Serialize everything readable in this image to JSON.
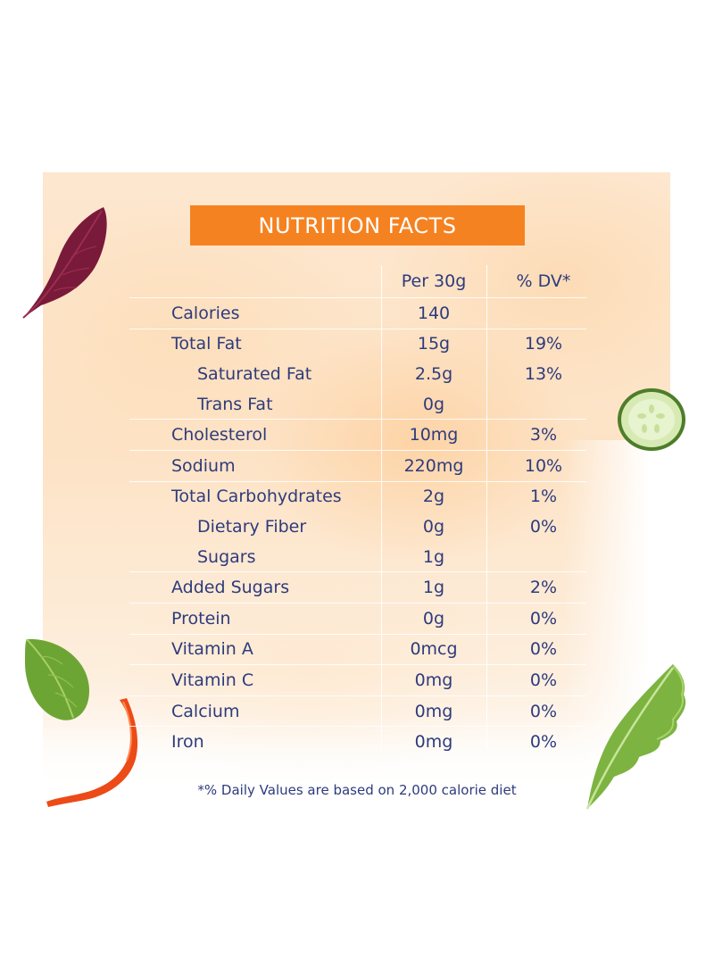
{
  "title": "NUTRITION FACTS",
  "columns": {
    "amount": "Per 30g",
    "dv": "% DV*"
  },
  "rows": [
    {
      "name": "Calories",
      "amount": "140",
      "dv": "",
      "sub": false,
      "line": true
    },
    {
      "name": "Total Fat",
      "amount": "15g",
      "dv": "19%",
      "sub": false,
      "line": true
    },
    {
      "name": "Saturated Fat",
      "amount": "2.5g",
      "dv": "13%",
      "sub": true,
      "line": false
    },
    {
      "name": "Trans Fat",
      "amount": "0g",
      "dv": "",
      "sub": true,
      "line": false
    },
    {
      "name": "Cholesterol",
      "amount": "10mg",
      "dv": "3%",
      "sub": false,
      "line": true
    },
    {
      "name": "Sodium",
      "amount": "220mg",
      "dv": "10%",
      "sub": false,
      "line": true
    },
    {
      "name": "Total Carbohydrates",
      "amount": "2g",
      "dv": "1%",
      "sub": false,
      "line": true
    },
    {
      "name": "Dietary Fiber",
      "amount": "0g",
      "dv": "0%",
      "sub": true,
      "line": false
    },
    {
      "name": "Sugars",
      "amount": "1g",
      "dv": "",
      "sub": true,
      "line": false
    },
    {
      "name": "Added Sugars",
      "amount": "1g",
      "dv": "2%",
      "sub": false,
      "line": true
    },
    {
      "name": "Protein",
      "amount": "0g",
      "dv": "0%",
      "sub": false,
      "line": true
    },
    {
      "name": "Vitamin A",
      "amount": "0mcg",
      "dv": "0%",
      "sub": false,
      "line": true
    },
    {
      "name": "Vitamin C",
      "amount": "0mg",
      "dv": "0%",
      "sub": false,
      "line": true
    },
    {
      "name": "Calcium",
      "amount": "0mg",
      "dv": "0%",
      "sub": false,
      "line": true
    },
    {
      "name": "Iron",
      "amount": "0mg",
      "dv": "0%",
      "sub": false,
      "line": true
    }
  ],
  "footnote": "*% Daily Values are based on 2,000 calorie diet",
  "colors": {
    "accent": "#f58220",
    "text": "#2e3b7c",
    "panel": "#fde3c6"
  },
  "decorations": [
    "red-chard-leaf",
    "cucumber-slice",
    "basil-leaf",
    "red-pepper-strip",
    "lettuce-leaf"
  ]
}
